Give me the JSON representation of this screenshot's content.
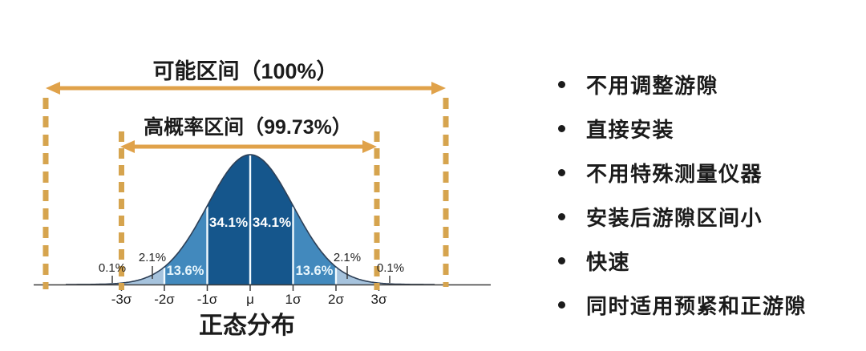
{
  "diagram": {
    "title_full_range": "可能区间（100%）",
    "title_high_prob_range": "高概率区间（99.73%）",
    "caption": "正态分布"
  },
  "chart_data": {
    "type": "area",
    "title": "正态分布",
    "subtitle_annotations": [
      {
        "label": "可能区间（100%）",
        "range": "-4σ..4σ",
        "percent": 100
      },
      {
        "label": "高概率区间（99.73%）",
        "range": "-3σ..3σ",
        "percent": 99.73
      }
    ],
    "x_tick_labels": [
      "-3σ",
      "-2σ",
      "-1σ",
      "μ",
      "1σ",
      "2σ",
      "3σ"
    ],
    "xlabel": "",
    "ylabel": "",
    "grid": false,
    "segments": [
      {
        "from": "-4σ",
        "to": "-3σ",
        "label": "0.1%",
        "value": 0.1,
        "color_key": "tail"
      },
      {
        "from": "-3σ",
        "to": "-2σ",
        "label": "2.1%",
        "value": 2.1,
        "color_key": "light"
      },
      {
        "from": "-2σ",
        "to": "-1σ",
        "label": "13.6%",
        "value": 13.6,
        "color_key": "mid"
      },
      {
        "from": "-1σ",
        "to": "μ",
        "label": "34.1%",
        "value": 34.1,
        "color_key": "dark"
      },
      {
        "from": "μ",
        "to": "1σ",
        "label": "34.1%",
        "value": 34.1,
        "color_key": "dark"
      },
      {
        "from": "1σ",
        "to": "2σ",
        "label": "13.6%",
        "value": 13.6,
        "color_key": "mid"
      },
      {
        "from": "2σ",
        "to": "3σ",
        "label": "2.1%",
        "value": 2.1,
        "color_key": "light"
      },
      {
        "from": "3σ",
        "to": "4σ",
        "label": "0.1%",
        "value": 0.1,
        "color_key": "tail"
      }
    ]
  },
  "colors": {
    "dark": "#15568c",
    "mid": "#4289bd",
    "light": "#a6c3dd",
    "tail": "#d9e6f2",
    "curve_outline": "#2e4057",
    "arrow": "#e0a24a",
    "dashed": "#d6a44e",
    "axis": "#3c3c3c",
    "text_dark": "#1b1b1b",
    "label_white": "#ffffff"
  },
  "bullets": {
    "items": [
      "不用调整游隙",
      "直接安装",
      "不用特殊测量仪器",
      "安装后游隙区间小",
      "快速",
      "同时适用预紧和正游隙"
    ]
  }
}
